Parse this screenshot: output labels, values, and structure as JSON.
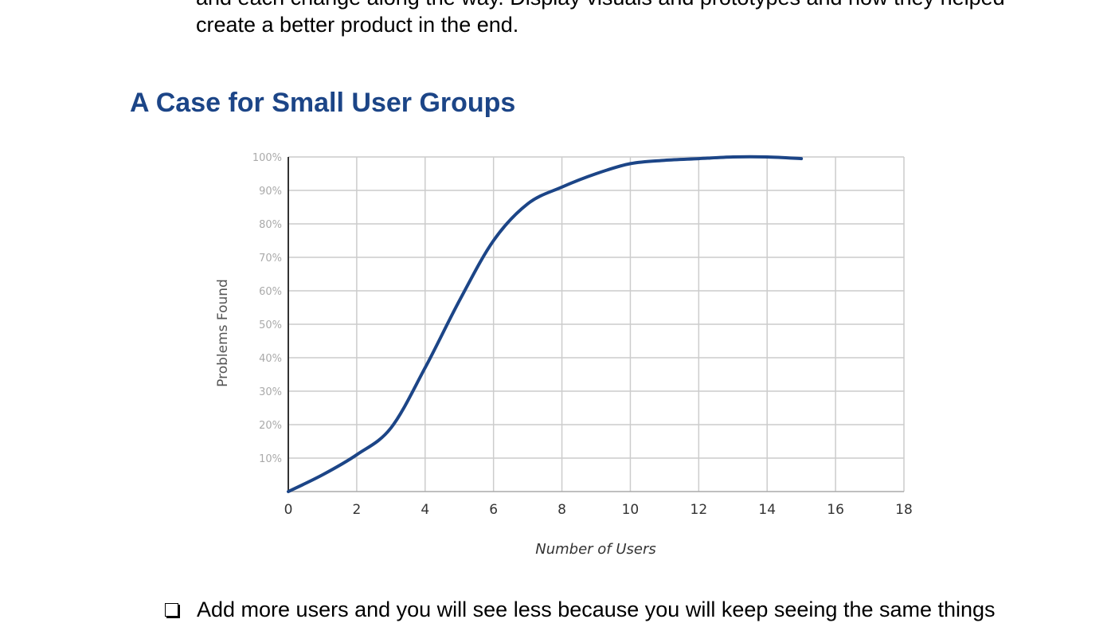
{
  "intro": {
    "line1": "and each change along the way. Display visuals and prototypes and how they helped",
    "line2": "create a better product in the end."
  },
  "section": {
    "title": "A Case for Small User Groups"
  },
  "chart_data": {
    "type": "line",
    "title": "",
    "xlabel": "Number of Users",
    "ylabel": "Problems Found",
    "xlim": [
      0,
      18
    ],
    "ylim": [
      0,
      100
    ],
    "x_ticks": [
      "0",
      "2",
      "4",
      "6",
      "8",
      "10",
      "12",
      "14",
      "16",
      "18"
    ],
    "y_ticks": [
      "10%",
      "20%",
      "30%",
      "40%",
      "50%",
      "60%",
      "70%",
      "80%",
      "90%",
      "100%"
    ],
    "grid": true,
    "legend": "none",
    "line_color": "#1c4587",
    "series": [
      {
        "x": [
          0,
          1,
          2,
          3,
          4,
          5,
          6,
          7,
          8,
          9,
          10,
          11,
          12,
          13,
          14,
          15
        ],
        "y": [
          0,
          5,
          11,
          19,
          37,
          57,
          75,
          86,
          91,
          95,
          98,
          99,
          99.5,
          100,
          100,
          99.5
        ]
      }
    ]
  },
  "bullets": [
    {
      "icon": "checkbox-icon",
      "text": "Add more users and you will see less because you will keep seeing the same things"
    }
  ]
}
